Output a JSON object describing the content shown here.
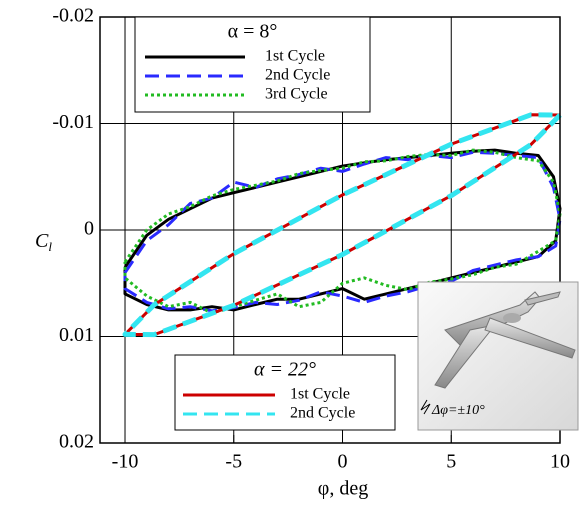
{
  "chart_data": {
    "type": "line",
    "xlabel": "φ, deg",
    "ylabel": "C",
    "ylabel_sub": "l",
    "xlim": [
      -11.15,
      10
    ],
    "ylim": [
      -0.02,
      0.02
    ],
    "y_reversed": true,
    "xticks": [
      -10,
      -5,
      0,
      5,
      10
    ],
    "yticks": [
      -0.02,
      -0.01,
      0,
      0.01,
      0.02
    ],
    "grid": true,
    "groups": [
      {
        "title": "α = 8°",
        "title_color": "#000000",
        "series": [
          {
            "name": "1st Cycle",
            "color": "#000000",
            "style": "solid",
            "x": [
              -10,
              -9,
              -8,
              -7,
              -6,
              -5,
              -4,
              -3,
              -2,
              -1,
              0,
              1,
              2,
              3,
              4,
              5,
              6,
              7,
              8,
              9,
              9.7,
              10,
              9.8,
              9,
              8,
              7,
              6,
              5,
              4,
              3,
              2,
              1,
              0,
              -1,
              -2,
              -3,
              -4,
              -5,
              -6,
              -7,
              -8,
              -9,
              -10,
              -10
            ],
            "values": [
              0.0035,
              0.0005,
              -0.001,
              -0.002,
              -0.003,
              -0.0035,
              -0.004,
              -0.0045,
              -0.005,
              -0.0055,
              -0.006,
              -0.0063,
              -0.0066,
              -0.0068,
              -0.007,
              -0.0072,
              -0.0074,
              -0.0075,
              -0.0072,
              -0.007,
              -0.005,
              -0.002,
              0.001,
              0.0025,
              0.003,
              0.0035,
              0.004,
              0.0045,
              0.005,
              0.0055,
              0.006,
              0.0065,
              0.0055,
              0.006,
              0.0065,
              0.0065,
              0.007,
              0.0075,
              0.0072,
              0.0075,
              0.0075,
              0.007,
              0.006,
              0.0035
            ]
          },
          {
            "name": "2nd Cycle",
            "color": "#2a2aff",
            "style": "dashed",
            "x": [
              -10,
              -9,
              -8,
              -7,
              -6,
              -5,
              -4,
              -3,
              -2,
              -1,
              0,
              1,
              2,
              3,
              4,
              5,
              6,
              7,
              8,
              9,
              9.7,
              10,
              9.8,
              9,
              8,
              7,
              6,
              5,
              4,
              3,
              2,
              1,
              0,
              -1,
              -2,
              -3,
              -4,
              -5,
              -6,
              -7,
              -8,
              -9,
              -10,
              -10
            ],
            "values": [
              0.004,
              0.001,
              -0.0005,
              -0.0025,
              -0.003,
              -0.0045,
              -0.004,
              -0.0048,
              -0.0052,
              -0.0058,
              -0.0055,
              -0.0062,
              -0.0068,
              -0.0066,
              -0.007,
              -0.0068,
              -0.0073,
              -0.0072,
              -0.007,
              -0.0068,
              -0.004,
              -0.001,
              0.0015,
              0.0025,
              0.0028,
              0.0033,
              0.0038,
              0.0048,
              0.0052,
              0.0058,
              0.0062,
              0.0068,
              0.0062,
              0.0058,
              0.0066,
              0.007,
              0.0068,
              0.0073,
              0.0076,
              0.0072,
              0.0074,
              0.0068,
              0.0055,
              0.004
            ]
          },
          {
            "name": "3rd Cycle",
            "color": "#22bb22",
            "style": "dotted",
            "x": [
              -10,
              -9,
              -8,
              -7,
              -6,
              -5,
              -4,
              -3,
              -2,
              -1,
              0,
              1,
              2,
              3,
              4,
              5,
              6,
              7,
              8,
              9,
              9.7,
              10,
              9.8,
              9,
              8,
              7,
              6,
              5,
              4,
              3,
              2,
              1,
              0,
              -1,
              -2,
              -3,
              -4,
              -5,
              -6,
              -7,
              -8,
              -9,
              -10,
              -10
            ],
            "values": [
              0.003,
              0.0,
              -0.0015,
              -0.0022,
              -0.0032,
              -0.0038,
              -0.0042,
              -0.0046,
              -0.0053,
              -0.0056,
              -0.0058,
              -0.0064,
              -0.0065,
              -0.0069,
              -0.0071,
              -0.007,
              -0.0075,
              -0.0073,
              -0.0068,
              -0.0065,
              -0.0045,
              -0.0015,
              0.001,
              0.002,
              0.0032,
              0.0035,
              0.0042,
              0.0046,
              0.0049,
              0.0056,
              0.0052,
              0.0045,
              0.005,
              0.0068,
              0.0072,
              0.006,
              0.0066,
              0.0072,
              0.0078,
              0.0068,
              0.0072,
              0.0062,
              0.0045,
              0.003
            ]
          }
        ]
      },
      {
        "title": "α = 22°",
        "title_color": "#cc0000",
        "series": [
          {
            "name": "1st Cycle",
            "color": "#cc0000",
            "style": "solid",
            "x": [
              10,
              8.66,
              5,
              0,
              -5,
              -8.66,
              -10,
              -8.66,
              -5,
              0,
              5,
              8.66,
              10
            ],
            "values": [
              -0.0108,
              -0.00802,
              -0.00323,
              0.0023,
              0.00707,
              0.00982,
              0.0098,
              0.00702,
              0.00223,
              -0.0033,
              -0.00807,
              -0.01082,
              -0.0108
            ]
          },
          {
            "name": "2nd Cycle",
            "color": "#33e5f0",
            "style": "dashed",
            "x": [
              10,
              8.66,
              5,
              0,
              -5,
              -8.66,
              -10,
              -8.66,
              -5,
              0,
              5,
              8.66,
              10
            ],
            "values": [
              -0.0108,
              -0.00802,
              -0.00323,
              0.0023,
              0.00707,
              0.00982,
              0.0098,
              0.00702,
              0.00223,
              -0.0033,
              -0.00807,
              -0.01082,
              -0.0108
            ]
          }
        ]
      }
    ],
    "inset_label": "Δφ=±10°"
  }
}
